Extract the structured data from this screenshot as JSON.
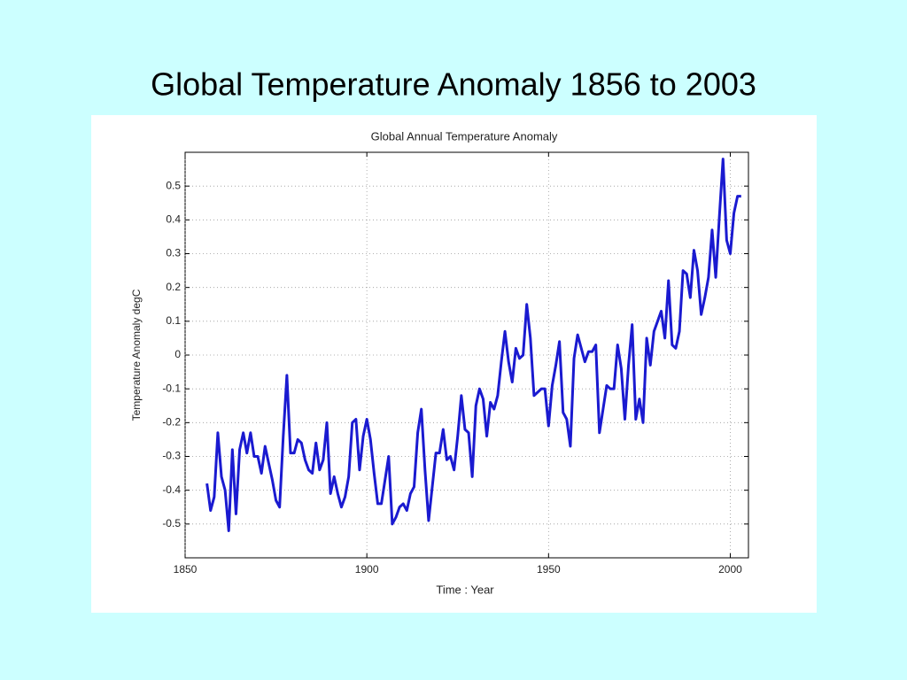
{
  "title": "Global Temperature Anomaly 1856 to 2003",
  "chart_data": {
    "type": "line",
    "title": "Global Annual Temperature Anomaly",
    "xlabel": "Time : Year",
    "ylabel": "Temperature Anomaly degC",
    "xlim": [
      1850,
      2005
    ],
    "ylim": [
      -0.6,
      0.6
    ],
    "xticks": [
      1850,
      1900,
      1950,
      2000
    ],
    "yticks": [
      -0.5,
      -0.4,
      -0.3,
      -0.2,
      -0.1,
      0,
      0.1,
      0.2,
      0.3,
      0.4,
      0.5
    ],
    "grid": true,
    "x": [
      1856,
      1857,
      1858,
      1859,
      1860,
      1861,
      1862,
      1863,
      1864,
      1865,
      1866,
      1867,
      1868,
      1869,
      1870,
      1871,
      1872,
      1873,
      1874,
      1875,
      1876,
      1877,
      1878,
      1879,
      1880,
      1881,
      1882,
      1883,
      1884,
      1885,
      1886,
      1887,
      1888,
      1889,
      1890,
      1891,
      1892,
      1893,
      1894,
      1895,
      1896,
      1897,
      1898,
      1899,
      1900,
      1901,
      1902,
      1903,
      1904,
      1905,
      1906,
      1907,
      1908,
      1909,
      1910,
      1911,
      1912,
      1913,
      1914,
      1915,
      1916,
      1917,
      1918,
      1919,
      1920,
      1921,
      1922,
      1923,
      1924,
      1925,
      1926,
      1927,
      1928,
      1929,
      1930,
      1931,
      1932,
      1933,
      1934,
      1935,
      1936,
      1937,
      1938,
      1939,
      1940,
      1941,
      1942,
      1943,
      1944,
      1945,
      1946,
      1947,
      1948,
      1949,
      1950,
      1951,
      1952,
      1953,
      1954,
      1955,
      1956,
      1957,
      1958,
      1959,
      1960,
      1961,
      1962,
      1963,
      1964,
      1965,
      1966,
      1967,
      1968,
      1969,
      1970,
      1971,
      1972,
      1973,
      1974,
      1975,
      1976,
      1977,
      1978,
      1979,
      1980,
      1981,
      1982,
      1983,
      1984,
      1985,
      1986,
      1987,
      1988,
      1989,
      1990,
      1991,
      1992,
      1993,
      1994,
      1995,
      1996,
      1997,
      1998,
      1999,
      2000,
      2001,
      2002,
      2003
    ],
    "series": [
      {
        "color": "#1a1ad0",
        "values": [
          -0.38,
          -0.46,
          -0.42,
          -0.23,
          -0.36,
          -0.4,
          -0.52,
          -0.28,
          -0.47,
          -0.28,
          -0.23,
          -0.29,
          -0.23,
          -0.3,
          -0.3,
          -0.35,
          -0.27,
          -0.32,
          -0.37,
          -0.43,
          -0.45,
          -0.24,
          -0.06,
          -0.29,
          -0.29,
          -0.25,
          -0.26,
          -0.31,
          -0.34,
          -0.35,
          -0.26,
          -0.34,
          -0.31,
          -0.2,
          -0.41,
          -0.36,
          -0.41,
          -0.45,
          -0.42,
          -0.36,
          -0.2,
          -0.19,
          -0.34,
          -0.24,
          -0.19,
          -0.25,
          -0.35,
          -0.44,
          -0.44,
          -0.37,
          -0.3,
          -0.5,
          -0.48,
          -0.45,
          -0.44,
          -0.46,
          -0.41,
          -0.39,
          -0.23,
          -0.16,
          -0.34,
          -0.49,
          -0.39,
          -0.29,
          -0.29,
          -0.22,
          -0.31,
          -0.3,
          -0.34,
          -0.24,
          -0.12,
          -0.22,
          -0.23,
          -0.36,
          -0.15,
          -0.1,
          -0.13,
          -0.24,
          -0.14,
          -0.16,
          -0.12,
          -0.02,
          0.07,
          -0.02,
          -0.08,
          0.02,
          -0.01,
          0.0,
          0.15,
          0.05,
          -0.12,
          -0.11,
          -0.1,
          -0.1,
          -0.21,
          -0.09,
          -0.03,
          0.04,
          -0.17,
          -0.19,
          -0.27,
          -0.01,
          0.06,
          0.02,
          -0.02,
          0.01,
          0.01,
          0.03,
          -0.23,
          -0.16,
          -0.09,
          -0.1,
          -0.1,
          0.03,
          -0.04,
          -0.19,
          -0.03,
          0.09,
          -0.19,
          -0.13,
          -0.2,
          0.05,
          -0.03,
          0.07,
          0.1,
          0.13,
          0.05,
          0.22,
          0.03,
          0.02,
          0.07,
          0.25,
          0.24,
          0.17,
          0.31,
          0.25,
          0.12,
          0.17,
          0.23,
          0.37,
          0.23,
          0.41,
          0.58,
          0.34,
          0.3,
          0.42,
          0.47,
          0.47
        ]
      }
    ]
  }
}
